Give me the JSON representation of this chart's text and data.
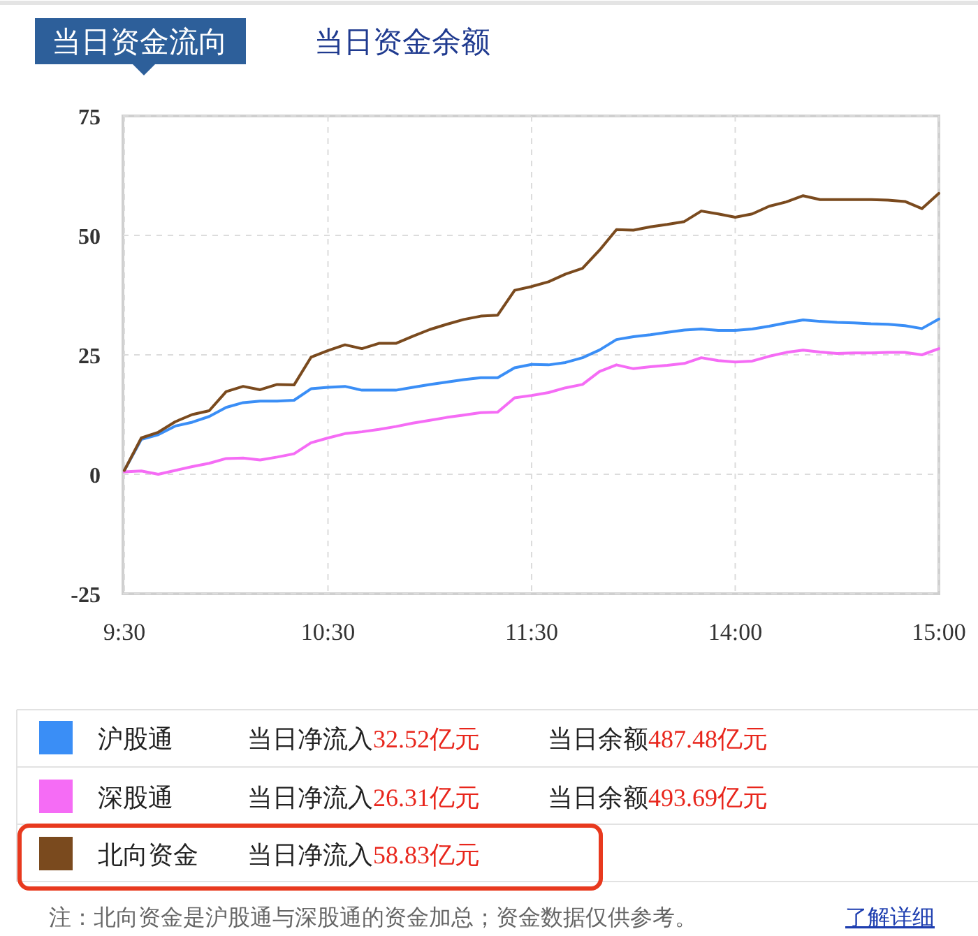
{
  "chart_data": {
    "type": "line",
    "title": "当日资金流向",
    "subtitle": "当日资金余额",
    "categories": [
      "9:30",
      null,
      null,
      null,
      null,
      null,
      null,
      null,
      null,
      null,
      null,
      null,
      "10:30",
      null,
      null,
      null,
      null,
      null,
      null,
      null,
      null,
      null,
      null,
      null,
      "11:30",
      null,
      null,
      null,
      null,
      null,
      null,
      null,
      null,
      null,
      null,
      null,
      "14:00",
      null,
      null,
      null,
      null,
      null,
      null,
      null,
      null,
      null,
      null,
      null,
      "15:00"
    ],
    "ylim": [
      -25,
      75
    ],
    "yticks": [
      75,
      50,
      25,
      0,
      -25
    ],
    "grid": true,
    "legend": "bottom",
    "line_style": "solid",
    "series": [
      {
        "name": "沪股通",
        "color": "#3a8ef6",
        "values": [
          0.8,
          7.3,
          8.3,
          10.1,
          10.9,
          12.1,
          14,
          15,
          15.3,
          15.3,
          15.5,
          17.9,
          18.2,
          18.4,
          17.6,
          17.6,
          17.6,
          18.2,
          18.8,
          19.3,
          19.8,
          20.2,
          20.2,
          22.3,
          23,
          22.9,
          23.4,
          24.4,
          26,
          28.2,
          28.8,
          29.2,
          29.7,
          30.2,
          30.4,
          30.1,
          30.1,
          30.4,
          31,
          31.7,
          32.3,
          32,
          31.8,
          31.7,
          31.5,
          31.4,
          31.1,
          30.5,
          32.5
        ]
      },
      {
        "name": "深股通",
        "color": "#f56cf5",
        "values": [
          0.5,
          0.7,
          0,
          0.8,
          1.6,
          2.3,
          3.3,
          3.4,
          3,
          3.6,
          4.3,
          6.6,
          7.6,
          8.5,
          8.9,
          9.4,
          10,
          10.7,
          11.3,
          11.9,
          12.4,
          12.9,
          13,
          16,
          16.5,
          17.1,
          18.1,
          18.8,
          21.5,
          22.9,
          22.1,
          22.5,
          22.8,
          23.2,
          24.4,
          23.8,
          23.5,
          23.7,
          24.7,
          25.5,
          26,
          25.6,
          25.3,
          25.4,
          25.4,
          25.5,
          25.5,
          25,
          26.3
        ]
      },
      {
        "name": "北向资金",
        "color": "#7a4a1e",
        "values": [
          0.8,
          7.6,
          8.8,
          11,
          12.5,
          13.3,
          17.3,
          18.4,
          17.7,
          18.8,
          18.7,
          24.5,
          25.9,
          27.1,
          26.3,
          27.4,
          27.4,
          28.9,
          30.3,
          31.4,
          32.4,
          33.1,
          33.3,
          38.5,
          39.3,
          40.3,
          41.9,
          43.1,
          46.9,
          51.2,
          51.1,
          51.8,
          52.3,
          52.9,
          55.1,
          54.5,
          53.8,
          54.5,
          56.1,
          57,
          58.3,
          57.5,
          57.5,
          57.5,
          57.5,
          57.4,
          57.1,
          55.6,
          58.8
        ]
      }
    ],
    "annotations": [
      "当日净流入32.52亿元",
      "当日余额487.48亿元",
      "当日净流入26.31亿元",
      "当日余额493.69亿元",
      "当日净流入58.83亿元",
      "注：北向资金是沪股通与深股通的资金加总；资金数据仅供参考。",
      "了解详细"
    ]
  }
}
